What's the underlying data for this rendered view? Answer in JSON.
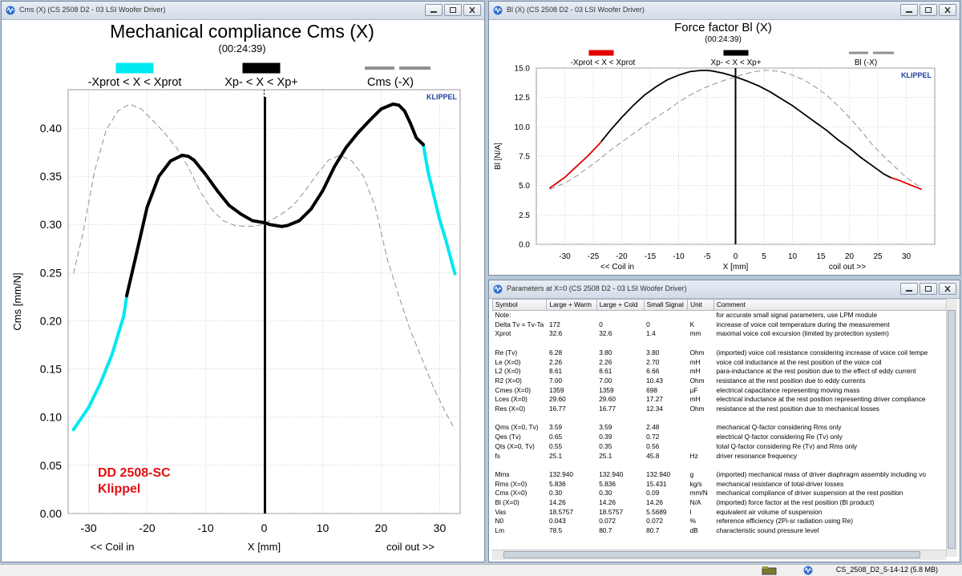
{
  "win1": {
    "title": "Cms (X) (CS 2508 D2 - 03 LSI Woofer Driver)",
    "chart_title": "Mechanical compliance Cms (X)",
    "time": "(00:24:39)",
    "legend": [
      "-Xprot < X < Xprot",
      "Xp- < X < Xp+",
      "Cms (-X)"
    ],
    "ylabel": "Cms [mm/N]",
    "xlabel": "X [mm]",
    "left_note": "<< Coil in",
    "right_note": "coil out >>",
    "brand": "KLIPPEL",
    "annot1": "DD 2508-SC",
    "annot2": "Klippel"
  },
  "win2": {
    "title": "Bl (X) (CS 2508 D2 - 03 LSI Woofer Driver)",
    "chart_title": "Force factor Bl (X)",
    "time": "(00:24:39)",
    "legend": [
      "-Xprot < X < Xprot",
      "Xp- < X < Xp+",
      "Bl (-X)"
    ],
    "ylabel": "Bl [N/A]",
    "xlabel": "X [mm]",
    "left_note": "<< Coil in",
    "right_note": "coil out >>",
    "brand": "KLIPPEL"
  },
  "win3": {
    "title": "Parameters at X=0 (CS 2508 D2 - 03 LSI Woofer Driver)",
    "headers": [
      "Symbol",
      "Large + Warm",
      "Large + Cold",
      "Small Signal",
      "Unit",
      "Comment"
    ],
    "rows": [
      [
        "Note:",
        "",
        "",
        "",
        "",
        "for accurate small signal parameters, use LPM module"
      ],
      [
        "Delta Tv = Tv-Ta",
        "172",
        "0",
        "0",
        "K",
        "increase of voice coil temperature during the measurement"
      ],
      [
        "Xprot",
        "32.6",
        "32.6",
        "1.4",
        "mm",
        "maximal voice coil excursion (limited by protection system)"
      ],
      [
        "",
        "",
        "",
        "",
        "",
        ""
      ],
      [
        "Re (Tv)",
        "6.28",
        "3.80",
        "3.80",
        "Ohm",
        "(imported) voice coil resistance considering increase of voice coil tempe"
      ],
      [
        "Le (X=0)",
        "2.26",
        "2.26",
        "2.70",
        "mH",
        "voice coil inductance at the rest position of the voice coil"
      ],
      [
        "L2 (X=0)",
        "8.61",
        "8.61",
        "6.66",
        "mH",
        "para-inductance at the rest position due to the effect of eddy current"
      ],
      [
        "R2 (X=0)",
        "7.00",
        "7.00",
        "10.43",
        "Ohm",
        "resistance at the rest position due to eddy currents"
      ],
      [
        "Cmes (X=0)",
        "1359",
        "1359",
        "698",
        "µF",
        "electrical capacitance representing moving mass"
      ],
      [
        "Lces (X=0)",
        "29.60",
        "29.60",
        "17.27",
        "mH",
        "electrical inductance at the rest position representing driver compliance"
      ],
      [
        "Res (X=0)",
        "16.77",
        "16.77",
        "12.34",
        "Ohm",
        "resistance at the rest position due to mechanical losses"
      ],
      [
        "",
        "",
        "",
        "",
        "",
        ""
      ],
      [
        "Qms (X=0, Tv)",
        "3.59",
        "3.59",
        "2.48",
        "",
        "mechanical Q-factor considering Rms only"
      ],
      [
        "Qes (Tv)",
        "0.65",
        "0.39",
        "0.72",
        "",
        "electrical Q-factor considering Re (Tv) only"
      ],
      [
        "Qts (X=0, Tv)",
        "0.55",
        "0.35",
        "0.56",
        "",
        "total Q-factor considering Re (Tv) and Rms only"
      ],
      [
        "fs",
        "25.1",
        "25.1",
        "45.8",
        "Hz",
        "driver resonance frequency"
      ],
      [
        "",
        "",
        "",
        "",
        "",
        ""
      ],
      [
        "Mms",
        "132.940",
        "132.940",
        "132.940",
        "g",
        "(imported) mechanical mass of driver diaphragm assembly including vo"
      ],
      [
        "Rms (X=0)",
        "5.836",
        "5.836",
        "15.431",
        "kg/s",
        "mechanical resistance of  total-driver losses"
      ],
      [
        "Cms (X=0)",
        "0.30",
        "0.30",
        "0.09",
        "mm/N",
        "mechanical compliance of driver suspension at the rest position"
      ],
      [
        "Bl (X=0)",
        "14.26",
        "14.26",
        "14.26",
        "N/A",
        "(imported) force factor at the rest position (Bl product)"
      ],
      [
        "Vas",
        "18.5757",
        "18.5757",
        "5.5689",
        "l",
        "equivalent air volume of suspension"
      ],
      [
        "N0",
        "0.043",
        "0.072",
        "0.072",
        "%",
        "reference efficiency (2Pi-sr radiation using Re)"
      ],
      [
        "Lm",
        "78.5",
        "80.7",
        "80.7",
        "dB",
        "characteristic sound pressure level"
      ]
    ]
  },
  "status": {
    "file": "CS_2508_D2_5-14-12 (5.8 MB)"
  },
  "colors": {
    "protect": "#00e8f0",
    "measured": "#000000",
    "mirror": "#909090",
    "bl_protect": "#e00000",
    "annotation": "#e01010",
    "brand": "#1f3f9f"
  },
  "chart_data": [
    {
      "type": "line",
      "title": "Mechanical compliance Cms (X)",
      "xlabel": "X [mm]",
      "ylabel": "Cms [mm/N]",
      "xlim": [
        -33.5,
        33.5
      ],
      "ylim": [
        0,
        0.44
      ],
      "x_ticks": [
        -30,
        -20,
        -10,
        0,
        10,
        20,
        30
      ],
      "y_ticks": [
        0.0,
        0.05,
        0.1,
        0.15,
        0.2,
        0.25,
        0.3,
        0.35,
        0.4
      ],
      "grid": true,
      "legend_position": "top",
      "series": [
        {
          "name": "-Xprot < X < Xprot",
          "x": [
            -32.6,
            -30,
            -28,
            -26,
            -24,
            -23.5
          ],
          "y": [
            0.087,
            0.11,
            0.135,
            0.165,
            0.205,
            0.225
          ]
        },
        {
          "name": "Xp- < X < Xp+",
          "x": [
            -23.5,
            -22,
            -20,
            -18,
            -16,
            -14,
            -13,
            -12,
            -10,
            -8,
            -6,
            -4,
            -2,
            0,
            1,
            2,
            3,
            4,
            6,
            8,
            10,
            12,
            14,
            16,
            18,
            20,
            22,
            23,
            24,
            25,
            26,
            27.2
          ],
          "y": [
            0.226,
            0.265,
            0.318,
            0.35,
            0.366,
            0.372,
            0.371,
            0.367,
            0.352,
            0.335,
            0.32,
            0.311,
            0.304,
            0.302,
            0.3,
            0.299,
            0.298,
            0.299,
            0.304,
            0.316,
            0.335,
            0.36,
            0.38,
            0.395,
            0.408,
            0.42,
            0.425,
            0.424,
            0.418,
            0.405,
            0.39,
            0.383
          ]
        },
        {
          "name": "-Xprot < X < Xprot",
          "x": [
            27.2,
            28,
            29,
            30,
            31,
            32.6
          ],
          "y": [
            0.383,
            0.355,
            0.33,
            0.305,
            0.285,
            0.249
          ]
        },
        {
          "name": "Cms (-X)",
          "x": [
            -32.6,
            -31,
            -29,
            -27,
            -25,
            -23,
            -21,
            -19,
            -17,
            -15,
            -13,
            -11,
            -9,
            -7,
            -5,
            -3,
            -1,
            0,
            1,
            3,
            5,
            7,
            9,
            11,
            13,
            15,
            17,
            19,
            21,
            23,
            25,
            27,
            29,
            31,
            32.6
          ],
          "y": [
            0.249,
            0.29,
            0.355,
            0.398,
            0.418,
            0.425,
            0.42,
            0.408,
            0.395,
            0.38,
            0.36,
            0.335,
            0.316,
            0.304,
            0.299,
            0.298,
            0.299,
            0.301,
            0.304,
            0.311,
            0.32,
            0.335,
            0.352,
            0.367,
            0.372,
            0.366,
            0.35,
            0.318,
            0.265,
            0.226,
            0.19,
            0.16,
            0.13,
            0.105,
            0.087
          ]
        }
      ]
    },
    {
      "type": "line",
      "title": "Force factor Bl (X)",
      "xlabel": "X [mm]",
      "ylabel": "Bl [N/A]",
      "xlim": [
        -35,
        35
      ],
      "ylim": [
        0,
        15
      ],
      "x_ticks": [
        -30,
        -25,
        -20,
        -15,
        -10,
        -5,
        0,
        5,
        10,
        15,
        20,
        25,
        30
      ],
      "y_ticks": [
        0.0,
        2.5,
        5.0,
        7.5,
        10.0,
        12.5,
        15.0
      ],
      "grid": true,
      "legend_position": "top",
      "series": [
        {
          "name": "-Xprot < X < Xprot",
          "x": [
            -32.6,
            -30,
            -28,
            -26,
            -24,
            -23.5
          ],
          "y": [
            4.8,
            5.7,
            6.6,
            7.5,
            8.5,
            8.8
          ]
        },
        {
          "name": "Xp- < X < Xp+",
          "x": [
            -23.5,
            -22,
            -20,
            -18,
            -16,
            -14,
            -12,
            -10,
            -8,
            -6,
            -5,
            -4,
            -2,
            0,
            2,
            4,
            6,
            8,
            10,
            12,
            14,
            16,
            18,
            20,
            22,
            24,
            26,
            27.2
          ],
          "y": [
            8.8,
            9.7,
            10.8,
            11.8,
            12.7,
            13.4,
            14.0,
            14.4,
            14.7,
            14.8,
            14.8,
            14.75,
            14.55,
            14.26,
            13.9,
            13.5,
            13.0,
            12.4,
            11.8,
            11.1,
            10.4,
            9.7,
            8.9,
            8.2,
            7.4,
            6.7,
            6.0,
            5.7
          ]
        },
        {
          "name": "-Xprot < X < Xprot",
          "x": [
            27.2,
            29,
            31,
            32.6
          ],
          "y": [
            5.7,
            5.4,
            5.0,
            4.7
          ]
        },
        {
          "name": "Bl (-X)",
          "x": [
            -32.6,
            -30,
            -28,
            -26,
            -24,
            -22,
            -20,
            -18,
            -16,
            -14,
            -12,
            -10,
            -8,
            -6,
            -4,
            -2,
            0,
            2,
            4,
            5,
            6,
            8,
            10,
            12,
            14,
            16,
            18,
            20,
            22,
            24,
            26,
            28,
            30,
            32.6
          ],
          "y": [
            4.7,
            5.2,
            5.8,
            6.5,
            7.2,
            8.0,
            8.7,
            9.4,
            10.1,
            10.8,
            11.4,
            12.1,
            12.7,
            13.2,
            13.6,
            13.95,
            14.26,
            14.55,
            14.75,
            14.8,
            14.8,
            14.7,
            14.4,
            14.0,
            13.4,
            12.7,
            11.8,
            10.8,
            9.7,
            8.5,
            7.5,
            6.6,
            5.7,
            4.8
          ]
        }
      ]
    }
  ]
}
